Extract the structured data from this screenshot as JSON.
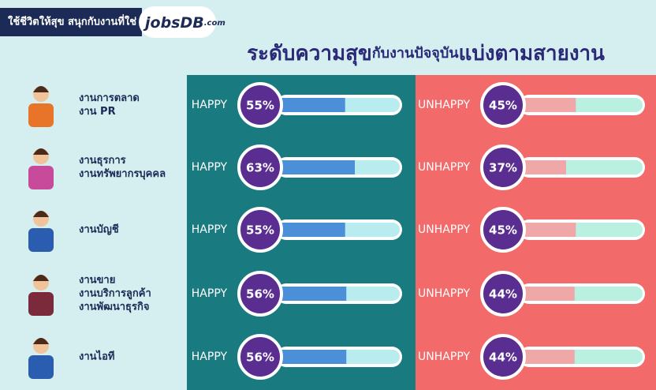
{
  "header": {
    "tagline": "ใช้ชีวิตให้สุข สนุกกับงานที่ใช่",
    "logo": "jobsDB",
    "logo_suffix": ".com",
    "title_start": "ระดับความสุข",
    "title_middle": "กับงานปัจจุบัน",
    "title_end": "แบ่งตามสายงาน"
  },
  "happy_label": "HAPPY",
  "unhappy_label": "UNHAPPY",
  "rows": [
    {
      "lines": [
        "งานการตลาด",
        "งาน PR"
      ],
      "happy": 55,
      "happy_text": "55%",
      "unhappy": 45,
      "unhappy_text": "45%"
    },
    {
      "lines": [
        "งานธุรการ",
        "งานทรัพยากรบุคคล"
      ],
      "happy": 63,
      "happy_text": "63%",
      "unhappy": 37,
      "unhappy_text": "37%"
    },
    {
      "lines": [
        "งานบัญชี"
      ],
      "happy": 55,
      "happy_text": "55%",
      "unhappy": 45,
      "unhappy_text": "45%"
    },
    {
      "lines": [
        "งานขาย",
        "งานบริการลูกค้า",
        "งานพัฒนาธุรกิจ"
      ],
      "happy": 56,
      "happy_text": "56%",
      "unhappy": 44,
      "unhappy_text": "44%"
    },
    {
      "lines": [
        "งานไอที"
      ],
      "happy": 56,
      "happy_text": "56%",
      "unhappy": 44,
      "unhappy_text": "44%"
    }
  ]
}
